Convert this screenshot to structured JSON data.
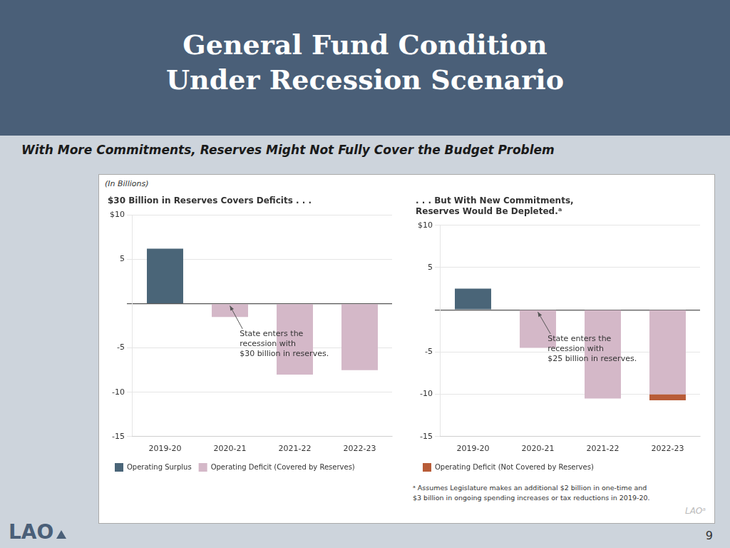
{
  "title": "General Fund Condition\nUnder Recession Scenario",
  "subtitle": "With More Commitments, Reserves Might Not Fully Cover the Budget Problem",
  "unit_label": "(In Billions)",
  "footnote": [
    "ᵃ Assumes Legislature makes an additional $2 billion in one-time and",
    "$3 billion in ongoing spending increases or tax reductions in 2019-20."
  ],
  "watermark": "LAOᵃ",
  "logo": "LAO",
  "page_number": "9",
  "chart_data": [
    {
      "type": "bar",
      "title": "$30 Billion in Reserves Covers Deficits . . .",
      "categories": [
        "2019-20",
        "2020-21",
        "2021-22",
        "2022-23"
      ],
      "series": [
        {
          "name": "Operating Surplus",
          "color": "#4a6578",
          "values": [
            6.2,
            null,
            null,
            null
          ]
        },
        {
          "name": "Operating Deficit (Covered by Reserves)",
          "color": "#d4b8c8",
          "values": [
            null,
            -1.5,
            -8.0,
            -7.5
          ]
        }
      ],
      "stacked": true,
      "ylim": [
        -15,
        10
      ],
      "yticks": [
        -15,
        -10,
        -5,
        {
          "value": 0,
          "label": null
        },
        5,
        {
          "value": 10,
          "label": "$10"
        }
      ],
      "grid": true,
      "legend": "bottom",
      "annotation": {
        "text": "State enters the\nrecession with\n$30 billion in reserves.",
        "category": "2020-21"
      }
    },
    {
      "type": "bar",
      "title": ". . . But With New Commitments,\nReserves Would Be Depleted.ᵃ",
      "categories": [
        "2019-20",
        "2020-21",
        "2021-22",
        "2022-23"
      ],
      "series": [
        {
          "color": "#4a6578",
          "values": [
            2.5,
            null,
            null,
            null
          ]
        },
        {
          "color": "#d4b8c8",
          "values": [
            null,
            -4.5,
            -10.5,
            -10.0
          ]
        },
        {
          "name": "Operating Deficit (Not Covered by Reserves)",
          "color": "#b85c38",
          "values": [
            null,
            null,
            null,
            -0.7
          ]
        }
      ],
      "stacked": true,
      "ylim": [
        -15,
        10
      ],
      "yticks": [
        -15,
        -10,
        -5,
        {
          "value": 0,
          "label": null
        },
        5,
        {
          "value": 10,
          "label": "$10"
        }
      ],
      "grid": true,
      "legend": "bottom",
      "annotation": {
        "text": "State enters the\nrecession with\n$25 billion in reserves.",
        "category": "2020-21"
      }
    }
  ]
}
